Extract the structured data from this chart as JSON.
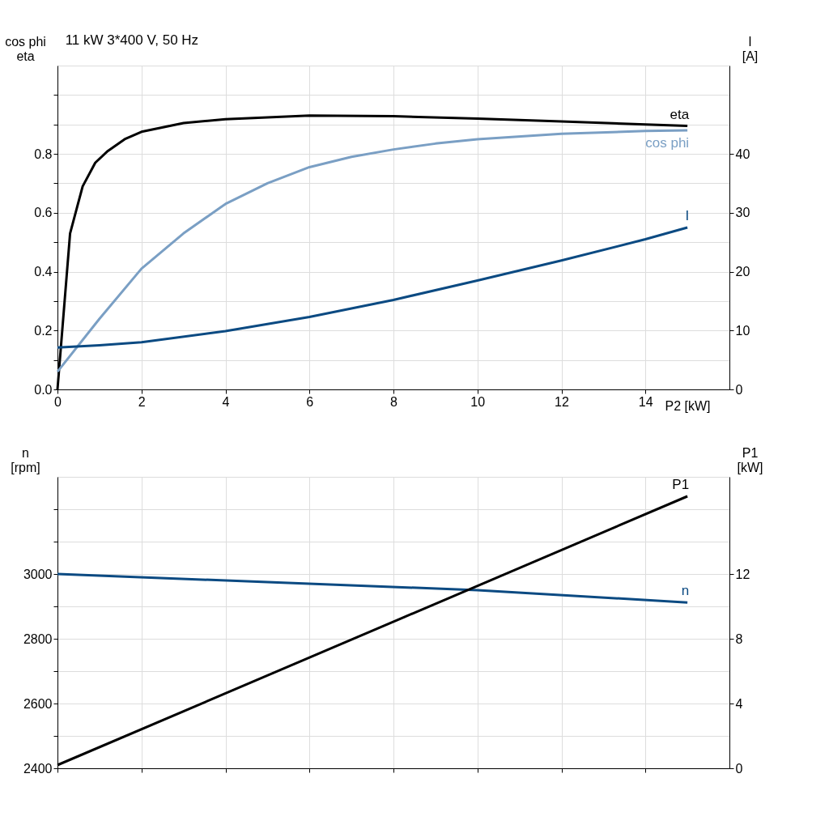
{
  "chart_data": [
    {
      "type": "line",
      "title": "11 kW   3*400 V, 50 Hz",
      "xlabel": "P2 [kW]",
      "ylabel": "cos phi\neta",
      "y2label": "I\n[A]",
      "xlim": [
        0,
        16
      ],
      "xticks": [
        0,
        2,
        4,
        6,
        8,
        10,
        12,
        14
      ],
      "ylim": [
        0,
        1.1
      ],
      "yticks": [
        {
          "value": 0,
          "label": "0.0"
        },
        {
          "value": 0.1,
          "label": null
        },
        0.2,
        {
          "value": 0.3,
          "label": null
        },
        0.4,
        {
          "value": 0.5,
          "label": null
        },
        0.6,
        {
          "value": 0.7,
          "label": null
        },
        0.8,
        {
          "value": 0.9,
          "label": null
        },
        {
          "value": 1.0,
          "label": null
        }
      ],
      "y2lim": [
        0,
        55
      ],
      "y2ticks": [
        0,
        10,
        20,
        30,
        40
      ],
      "grid": true,
      "legend": false,
      "line_style": "solid",
      "marker": "none",
      "series": [
        {
          "name": "eta",
          "color": "#000000",
          "x": [
            0,
            0.3,
            0.6,
            0.9,
            1.2,
            1.6,
            2,
            3,
            4,
            6,
            8,
            10,
            12,
            14,
            15
          ],
          "values": [
            0,
            0.53,
            0.69,
            0.77,
            0.81,
            0.85,
            0.875,
            0.905,
            0.918,
            0.93,
            0.928,
            0.92,
            0.91,
            0.9,
            0.895
          ]
        },
        {
          "name": "cos phi",
          "color": "#7a9fc4",
          "x": [
            0,
            1,
            2,
            3,
            4,
            5,
            6,
            7,
            8,
            9,
            10,
            12,
            14,
            15
          ],
          "values": [
            0.06,
            0.24,
            0.41,
            0.53,
            0.63,
            0.7,
            0.755,
            0.79,
            0.815,
            0.835,
            0.85,
            0.868,
            0.878,
            0.88
          ]
        },
        {
          "name": "I",
          "color": "#0b4a82",
          "axis": "y2",
          "x": [
            0,
            1,
            2,
            4,
            6,
            8,
            10,
            12,
            14,
            15
          ],
          "values": [
            7.1,
            7.5,
            8.0,
            9.9,
            12.3,
            15.2,
            18.5,
            21.9,
            25.5,
            27.5
          ]
        }
      ]
    },
    {
      "type": "line",
      "ylabel": "n\n[rpm]",
      "y2label": "P1\n[kW]",
      "tick_labels": "y",
      "xlim": [
        0,
        16
      ],
      "xticks": [
        0,
        2,
        4,
        6,
        8,
        10,
        12,
        14
      ],
      "ylim": [
        2400,
        3300
      ],
      "yticks": [
        2400,
        {
          "value": 2500,
          "label": null
        },
        2600,
        {
          "value": 2700,
          "label": null
        },
        2800,
        {
          "value": 2900,
          "label": null
        },
        3000,
        {
          "value": 3100,
          "label": null
        },
        {
          "value": 3200,
          "label": null
        }
      ],
      "y2lim": [
        0,
        18
      ],
      "y2ticks": [
        0,
        4,
        8,
        12
      ],
      "grid": true,
      "legend": false,
      "line_style": "solid",
      "marker": "none",
      "series": [
        {
          "name": "n",
          "color": "#0b4a82",
          "x": [
            0,
            5,
            10,
            15
          ],
          "values": [
            3000,
            2975,
            2950,
            2912
          ]
        },
        {
          "name": "P1",
          "color": "#000000",
          "axis": "y2",
          "x": [
            0,
            15
          ],
          "values": [
            0.2,
            16.8
          ]
        }
      ]
    }
  ]
}
